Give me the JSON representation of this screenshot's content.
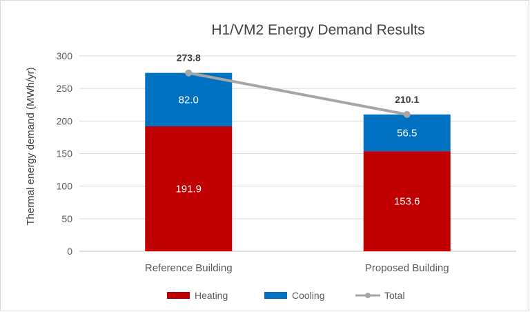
{
  "chart_data": {
    "type": "bar",
    "stacked": true,
    "title": "H1/VM2 Energy Demand Results",
    "ylabel": "Thermal energy demand (MWh/yr)",
    "xlabel": "",
    "ylim": [
      0,
      300
    ],
    "yticks": [
      0,
      50,
      100,
      150,
      200,
      250,
      300
    ],
    "grid": true,
    "legend_position": "bottom",
    "categories": [
      "Reference Building",
      "Proposed Building"
    ],
    "series": [
      {
        "name": "Heating",
        "type": "bar",
        "color": "#c00000",
        "values": [
          191.9,
          153.6
        ],
        "labels": [
          "191.9",
          "153.6"
        ]
      },
      {
        "name": "Cooling",
        "type": "bar",
        "color": "#0070c0",
        "values": [
          82.0,
          56.5
        ],
        "labels": [
          "82.0",
          "56.5"
        ]
      },
      {
        "name": "Total",
        "type": "line",
        "color": "#a6a6a6",
        "values": [
          273.8,
          210.1
        ],
        "labels": [
          "273.8",
          "210.1"
        ]
      }
    ]
  }
}
